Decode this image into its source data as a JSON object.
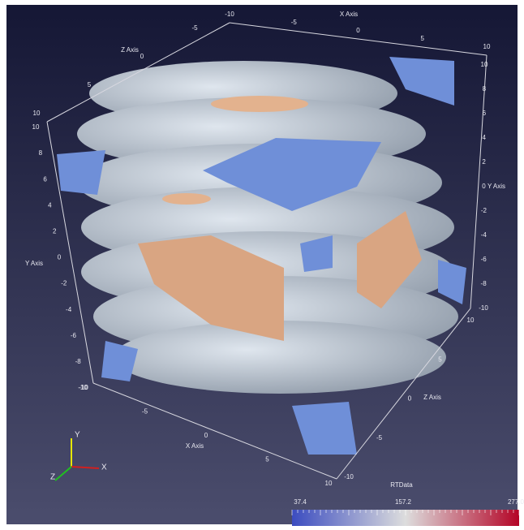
{
  "axes": {
    "x_top": {
      "title": "X Axis",
      "ticks": [
        -10,
        -5,
        0,
        5,
        10
      ]
    },
    "x_bottom": {
      "title": "X Axis",
      "ticks": [
        -10,
        -5,
        0,
        5,
        10
      ]
    },
    "z_top": {
      "title": "Z Axis",
      "ticks": [
        10,
        5,
        0,
        -5
      ]
    },
    "z_right": {
      "title": "Z Axis",
      "ticks": [
        -10,
        -5,
        0,
        5,
        10
      ]
    },
    "y_left": {
      "title": "Y Axis",
      "ticks": [
        10,
        8,
        6,
        4,
        2,
        0,
        -2,
        -4,
        -6,
        -8,
        -10
      ]
    },
    "y_right": {
      "title": "Y Axis",
      "ticks": [
        10,
        8,
        6,
        4,
        2,
        0,
        -2,
        -4,
        -6,
        -8,
        -10
      ]
    }
  },
  "orientation": {
    "x": "X",
    "y": "Y",
    "z": "Z"
  },
  "colorbar": {
    "title": "RTData",
    "labels": [
      "37.4",
      "157.2",
      "277.0"
    ]
  }
}
